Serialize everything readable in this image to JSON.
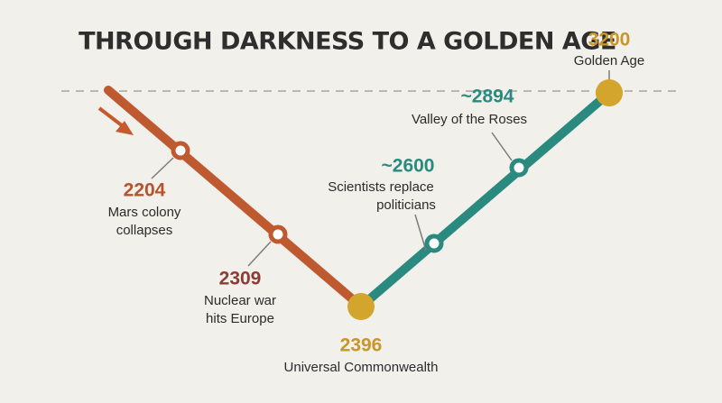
{
  "title": "THROUGH DARKNESS TO A GOLDEN AGE",
  "nodes": [
    {
      "year": "2204",
      "lines": [
        "Mars colony",
        "collapses"
      ]
    },
    {
      "year": "2309",
      "lines": [
        "Nuclear war",
        "hits Europe"
      ]
    },
    {
      "year": "2396",
      "lines": [
        "Universal Commonwealth"
      ]
    },
    {
      "year": "~2600",
      "lines": [
        "Scientists replace",
        "politicians"
      ]
    },
    {
      "year": "~2894",
      "lines": [
        "Valley of the Roses"
      ]
    },
    {
      "year": "3200",
      "lines": [
        "Golden Age"
      ]
    }
  ]
}
